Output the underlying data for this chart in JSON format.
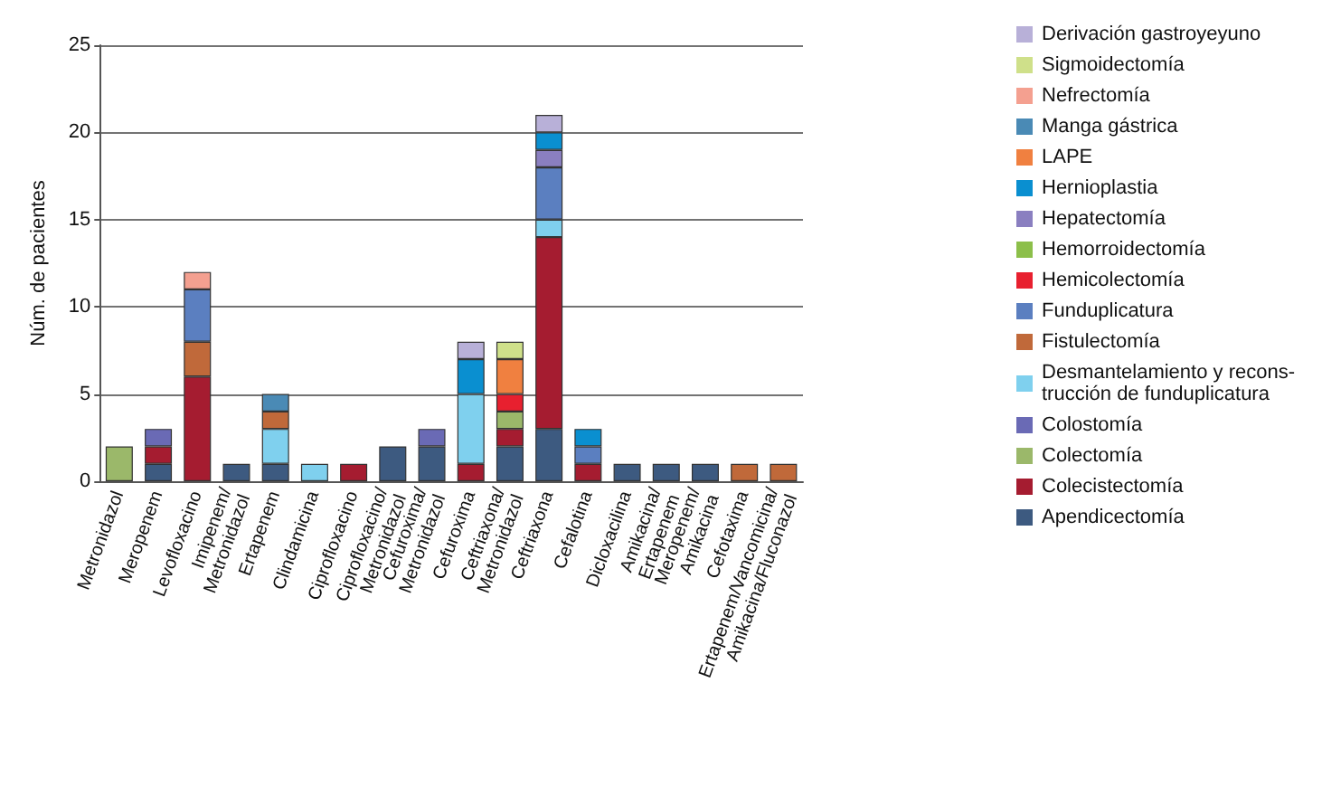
{
  "chart_data": {
    "type": "bar",
    "stacked": true,
    "ylabel": "Núm. de pacientes",
    "categories": [
      "Metronidazol",
      "Meropenem",
      "Levofloxacino",
      "Imipenem/\nMetronidazol",
      "Ertapenem",
      "Clindamicina",
      "Ciprofloxacino",
      "Ciprofloxacino/\nMetronidazol",
      "Cefuroxima/\nMetronidazol",
      "Cefuroxima",
      "Ceftriaxona/\nMetronidazol",
      "Ceftriaxona",
      "Cefalotina",
      "Dicloxacilina",
      "Amikacina/\nErtapenem",
      "Meropenem/\nAmikacina",
      "Cefotaxima",
      "Ertapenem/Vancomicina/\nAmikacina/Fluconazol"
    ],
    "series": [
      {
        "name": "Apendicectomía",
        "color": "#3d5a80",
        "values": [
          null,
          1,
          null,
          1,
          1,
          null,
          null,
          2,
          2,
          null,
          2,
          3,
          null,
          1,
          1,
          1,
          null,
          null
        ]
      },
      {
        "name": "Colecistectomía",
        "color": "#a51c30",
        "values": [
          null,
          1,
          6,
          null,
          null,
          null,
          1,
          null,
          null,
          1,
          1,
          11,
          1,
          null,
          null,
          null,
          null,
          null
        ]
      },
      {
        "name": "Colectomía",
        "color": "#9bb86a",
        "values": [
          2,
          null,
          null,
          null,
          null,
          null,
          null,
          null,
          null,
          null,
          1,
          null,
          null,
          null,
          null,
          null,
          null,
          null
        ]
      },
      {
        "name": "Colostomía",
        "color": "#6a6ab5",
        "values": [
          null,
          1,
          null,
          null,
          null,
          null,
          null,
          null,
          1,
          null,
          null,
          null,
          null,
          null,
          null,
          null,
          null,
          null
        ]
      },
      {
        "name": "Desmantelamiento y recons-\ntrucción de funduplicatura",
        "color": "#7fd0ee",
        "values": [
          null,
          null,
          null,
          null,
          2,
          1,
          null,
          null,
          null,
          4,
          null,
          1,
          null,
          null,
          null,
          null,
          null,
          null
        ]
      },
      {
        "name": "Fistulectomía",
        "color": "#c0693a",
        "values": [
          null,
          null,
          2,
          null,
          1,
          null,
          null,
          null,
          null,
          null,
          null,
          null,
          null,
          null,
          null,
          null,
          1,
          1
        ]
      },
      {
        "name": "Funduplicatura",
        "color": "#5b7fc0",
        "values": [
          null,
          null,
          3,
          null,
          null,
          null,
          null,
          null,
          null,
          null,
          null,
          3,
          1,
          null,
          null,
          null,
          null,
          null
        ]
      },
      {
        "name": "Hemicolectomía",
        "color": "#e8202f",
        "values": [
          null,
          null,
          null,
          null,
          null,
          null,
          null,
          null,
          null,
          null,
          1,
          null,
          null,
          null,
          null,
          null,
          null,
          null
        ]
      },
      {
        "name": "Hemorroidectomía",
        "color": "#8cbf4a",
        "values": [
          null,
          null,
          null,
          null,
          null,
          null,
          null,
          null,
          null,
          null,
          null,
          null,
          null,
          null,
          null,
          null,
          null,
          null
        ]
      },
      {
        "name": "Hepatectomía",
        "color": "#8a7fc0",
        "values": [
          null,
          null,
          null,
          null,
          null,
          null,
          null,
          null,
          null,
          null,
          null,
          1,
          null,
          null,
          null,
          null,
          null,
          null
        ]
      },
      {
        "name": "Hernioplastia",
        "color": "#0a8fd0",
        "values": [
          null,
          null,
          null,
          null,
          null,
          null,
          null,
          null,
          null,
          2,
          null,
          1,
          1,
          null,
          null,
          null,
          null,
          null
        ]
      },
      {
        "name": "LAPE",
        "color": "#f08040",
        "values": [
          null,
          null,
          null,
          null,
          null,
          null,
          null,
          null,
          null,
          null,
          2,
          null,
          null,
          null,
          null,
          null,
          null,
          null
        ]
      },
      {
        "name": "Manga gástrica",
        "color": "#4a8ab5",
        "values": [
          null,
          null,
          null,
          null,
          1,
          null,
          null,
          null,
          null,
          null,
          null,
          null,
          null,
          null,
          null,
          null,
          null,
          null
        ]
      },
      {
        "name": "Nefrectomía",
        "color": "#f4a090",
        "values": [
          null,
          null,
          1,
          null,
          null,
          null,
          null,
          null,
          null,
          null,
          null,
          null,
          null,
          null,
          null,
          null,
          null,
          null
        ]
      },
      {
        "name": "Sigmoidectomía",
        "color": "#cfe08a",
        "values": [
          null,
          null,
          null,
          null,
          null,
          null,
          null,
          null,
          null,
          null,
          1,
          null,
          null,
          null,
          null,
          null,
          null,
          null
        ]
      },
      {
        "name": "Derivación gastroyeyuno",
        "color": "#b8b0d8",
        "values": [
          null,
          null,
          null,
          null,
          null,
          null,
          null,
          null,
          null,
          1,
          null,
          1,
          null,
          null,
          null,
          null,
          null,
          null
        ]
      }
    ],
    "ylim": [
      0,
      25
    ],
    "yticks": [
      0,
      5,
      10,
      15,
      20,
      25
    ],
    "grid": "y",
    "legend": "right"
  }
}
